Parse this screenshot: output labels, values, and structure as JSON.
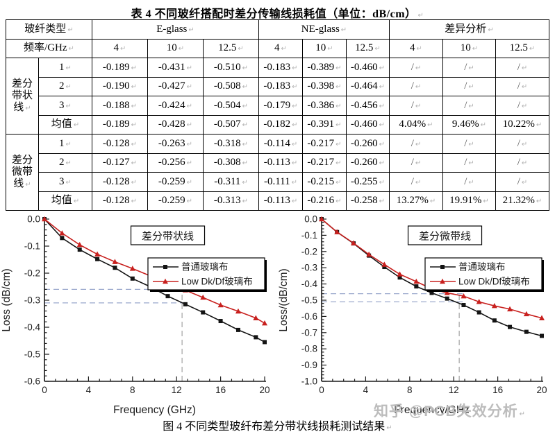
{
  "page": {
    "title": "表 4  不同玻纤搭配时差分传输线损耗值（单位：dB/cm）",
    "caption": "图 4  不同类型玻纤布差分带状线损耗测试结果",
    "watermark": "知乎 @PCB失效分析",
    "pilcrow": "↵"
  },
  "table": {
    "header_row1": [
      "玻纤类型",
      "E-glass",
      "NE-glass",
      "差异分析"
    ],
    "header_row2": [
      "频率/GHz",
      "4",
      "10",
      "12.5",
      "4",
      "10",
      "12.5",
      "4",
      "10",
      "12.5"
    ],
    "groups": [
      {
        "label": "差分带状线",
        "rows": [
          {
            "label": "1",
            "values": [
              "-0.189",
              "-0.431",
              "-0.510",
              "-0.183",
              "-0.389",
              "-0.460",
              "/",
              "/",
              "/"
            ]
          },
          {
            "label": "2",
            "values": [
              "-0.190",
              "-0.427",
              "-0.508",
              "-0.183",
              "-0.398",
              "-0.464",
              "/",
              "/",
              "/"
            ]
          },
          {
            "label": "3",
            "values": [
              "-0.188",
              "-0.424",
              "-0.504",
              "-0.179",
              "-0.386",
              "-0.456",
              "/",
              "/",
              "/"
            ]
          },
          {
            "label": "均值",
            "values": [
              "-0.189",
              "-0.428",
              "-0.507",
              "-0.182",
              "-0.391",
              "-0.460",
              "4.04%",
              "9.46%",
              "10.22%"
            ]
          }
        ]
      },
      {
        "label": "差分微带线",
        "rows": [
          {
            "label": "1",
            "values": [
              "-0.128",
              "-0.263",
              "-0.318",
              "-0.114",
              "-0.217",
              "-0.260",
              "/",
              "/",
              "/"
            ]
          },
          {
            "label": "2",
            "values": [
              "-0.127",
              "-0.256",
              "-0.308",
              "-0.113",
              "-0.217",
              "-0.260",
              "/",
              "/",
              "/"
            ]
          },
          {
            "label": "3",
            "values": [
              "-0.128",
              "-0.259",
              "-0.311",
              "-0.111",
              "-0.215",
              "-0.255",
              "/",
              "/",
              "/"
            ]
          },
          {
            "label": "均值",
            "values": [
              "-0.128",
              "-0.259",
              "-0.313",
              "-0.113",
              "-0.216",
              "-0.258",
              "13.27%",
              "19.91%",
              "21.32%"
            ]
          }
        ]
      }
    ]
  },
  "chart_data": [
    {
      "type": "line",
      "title": "差分带状线",
      "xlabel": "Frequency (GHz)",
      "ylabel": "Loss (dB/cm)",
      "xlim": [
        0,
        20
      ],
      "ylim": [
        -0.6,
        0
      ],
      "xticks": [
        0,
        4,
        8,
        12,
        16,
        20
      ],
      "yticks": [
        0.0,
        -0.1,
        -0.2,
        -0.3,
        -0.4,
        -0.5,
        -0.6
      ],
      "x": [
        0,
        1.6,
        3.2,
        4.8,
        6.4,
        8,
        9.6,
        11.2,
        12.8,
        14.4,
        16,
        17.6,
        19.2,
        20
      ],
      "series": [
        {
          "name": "普通玻璃布",
          "marker": "square",
          "color": "#141414",
          "values": [
            0,
            -0.07,
            -0.113,
            -0.148,
            -0.18,
            -0.22,
            -0.25,
            -0.285,
            -0.315,
            -0.345,
            -0.377,
            -0.41,
            -0.437,
            -0.455
          ]
        },
        {
          "name": "Low Dk/Df玻璃布",
          "marker": "triangle",
          "color": "#c8201e",
          "values": [
            0,
            -0.052,
            -0.095,
            -0.13,
            -0.158,
            -0.183,
            -0.21,
            -0.237,
            -0.263,
            -0.29,
            -0.318,
            -0.341,
            -0.366,
            -0.385
          ]
        }
      ],
      "ref_h": [
        -0.26,
        -0.31
      ],
      "ref_v": 12.5,
      "ref_color": "#9aa8cc",
      "legend_position": "right-middle",
      "grid": false
    },
    {
      "type": "line",
      "title": "差分微带线",
      "xlabel": "Frequency/GHz",
      "ylabel": "Loss/(dB/cm)",
      "xlim": [
        0,
        20
      ],
      "ylim": [
        -1.0,
        0
      ],
      "xticks": [
        0,
        4,
        8,
        12,
        16,
        20
      ],
      "yticks": [
        0.0,
        -0.1,
        -0.2,
        -0.3,
        -0.4,
        -0.5,
        -0.6,
        -0.7,
        -0.8,
        -0.9,
        -1.0
      ],
      "x": [
        0,
        1.4,
        2.9,
        4.3,
        5.7,
        7.1,
        8.6,
        10,
        11.4,
        12.9,
        14.3,
        15.7,
        17.1,
        18.6,
        20
      ],
      "series": [
        {
          "name": "普通玻璃布",
          "marker": "square",
          "color": "#141414",
          "values": [
            0,
            -0.08,
            -0.15,
            -0.225,
            -0.295,
            -0.36,
            -0.415,
            -0.455,
            -0.49,
            -0.53,
            -0.575,
            -0.625,
            -0.665,
            -0.695,
            -0.72
          ]
        },
        {
          "name": "Low Dk/Df玻璃布",
          "marker": "triangle",
          "color": "#c8201e",
          "values": [
            0,
            -0.08,
            -0.148,
            -0.218,
            -0.28,
            -0.34,
            -0.385,
            -0.43,
            -0.455,
            -0.475,
            -0.51,
            -0.535,
            -0.555,
            -0.585,
            -0.61
          ]
        }
      ],
      "ref_h": [
        -0.46,
        -0.51
      ],
      "ref_v": 12.5,
      "ref_color": "#9aa8cc",
      "legend_position": "right-middle",
      "grid": false
    }
  ]
}
